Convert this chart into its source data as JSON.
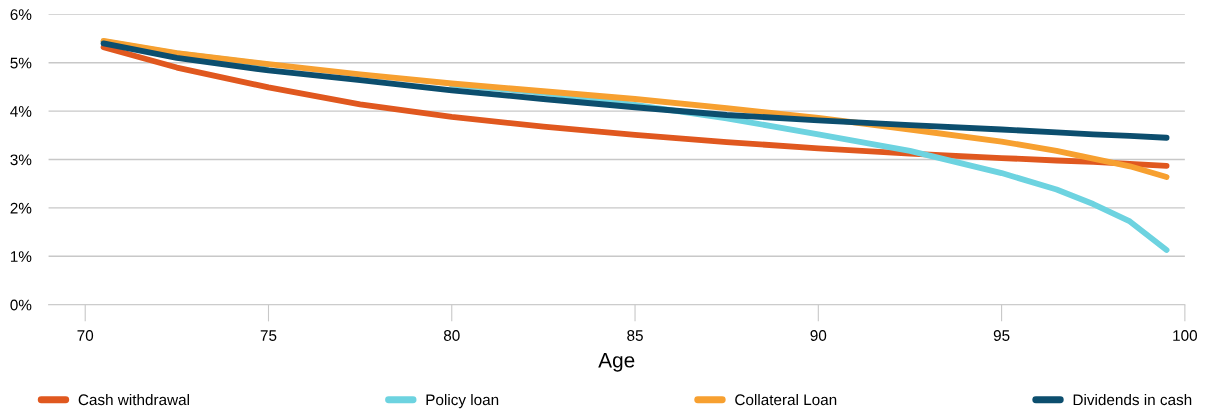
{
  "chart_data": {
    "type": "line",
    "xlabel": "Age",
    "x": [
      70.5,
      72.5,
      75,
      77.5,
      80,
      82.5,
      85,
      87.5,
      90,
      92.5,
      95,
      96.5,
      97.5,
      98.5,
      99.5
    ],
    "series": [
      {
        "name": "Cash withdrawal",
        "color": "#e0581f",
        "values": [
          5.32,
          4.9,
          4.49,
          4.14,
          3.88,
          3.68,
          3.51,
          3.36,
          3.23,
          3.12,
          3.03,
          2.98,
          2.95,
          2.91,
          2.87
        ]
      },
      {
        "name": "Policy loan",
        "color": "#6dd3e0",
        "values": [
          5.44,
          5.19,
          4.96,
          null,
          4.55,
          4.38,
          4.13,
          3.85,
          3.52,
          3.18,
          2.72,
          2.38,
          2.08,
          1.72,
          1.13
        ]
      },
      {
        "name": "Collateral Loan",
        "color": "#f7a030",
        "values": [
          5.45,
          5.2,
          4.97,
          4.76,
          4.57,
          4.41,
          4.25,
          4.06,
          3.86,
          3.62,
          3.37,
          3.18,
          3.02,
          2.86,
          2.64
        ]
      },
      {
        "name": "Dividends in cash",
        "color": "#0c4e6e",
        "values": [
          5.4,
          5.1,
          4.84,
          4.64,
          4.43,
          4.25,
          4.08,
          3.92,
          3.81,
          3.71,
          3.62,
          3.56,
          3.52,
          3.49,
          3.45
        ]
      }
    ],
    "xlim": [
      69,
      100
    ],
    "xticks": [
      70,
      75,
      80,
      85,
      90,
      95,
      100
    ],
    "ylim": [
      0,
      6
    ],
    "yticks": [
      {
        "value": 0,
        "label": "0%"
      },
      {
        "value": 1,
        "label": "1%"
      },
      {
        "value": 2,
        "label": "2%"
      },
      {
        "value": 3,
        "label": "3%"
      },
      {
        "value": 4,
        "label": "4%"
      },
      {
        "value": 5,
        "label": "5%"
      },
      {
        "value": 6,
        "label": "6%"
      }
    ],
    "grid": "y",
    "legend": "bottom",
    "marker": "none",
    "line_style": "solid"
  }
}
